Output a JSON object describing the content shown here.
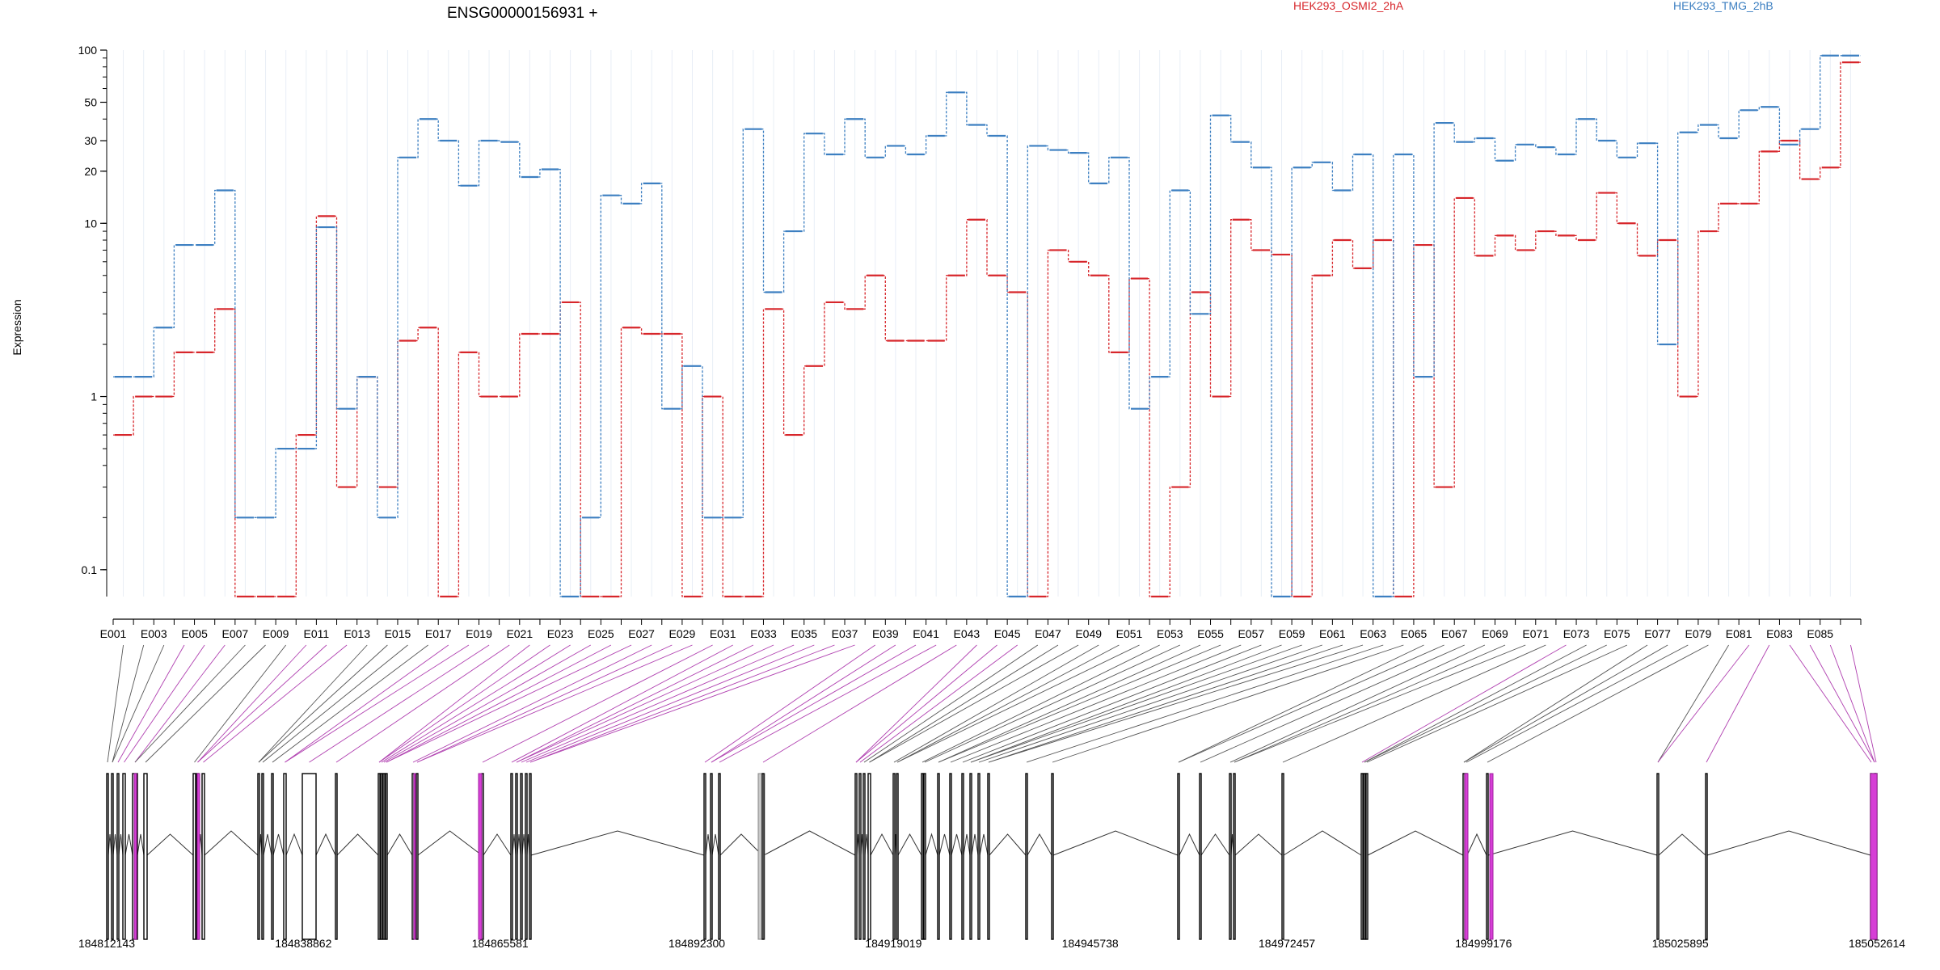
{
  "chart_data": {
    "type": "line",
    "title": "ENSG00000156931 +",
    "ylabel": "Expression",
    "xlabel": "",
    "yscale": "log",
    "yticks": [
      "0.1",
      "1",
      "10",
      "20",
      "30",
      "50",
      "100"
    ],
    "ylim": [
      0.07,
      100
    ],
    "grid": "vertical",
    "legend_placement": "top",
    "categories": [
      "E001",
      "E002",
      "E003",
      "E004",
      "E005",
      "E006",
      "E007",
      "E008",
      "E009",
      "E010",
      "E011",
      "E012",
      "E013",
      "E014",
      "E015",
      "E016",
      "E017",
      "E018",
      "E019",
      "E020",
      "E021",
      "E022",
      "E023",
      "E024",
      "E025",
      "E026",
      "E027",
      "E028",
      "E029",
      "E030",
      "E031",
      "E032",
      "E033",
      "E034",
      "E035",
      "E036",
      "E037",
      "E038",
      "E039",
      "E040",
      "E041",
      "E042",
      "E043",
      "E044",
      "E045",
      "E046",
      "E047",
      "E048",
      "E049",
      "E050",
      "E051",
      "E052",
      "E053",
      "E054",
      "E055",
      "E056",
      "E057",
      "E058",
      "E059",
      "E060",
      "E061",
      "E062",
      "E063",
      "E064",
      "E065",
      "E066",
      "E067",
      "E068",
      "E069",
      "E070",
      "E071",
      "E072",
      "E073",
      "E074",
      "E075",
      "E076",
      "E077",
      "E078",
      "E079",
      "E080",
      "E081",
      "E082",
      "E083",
      "E084",
      "E085",
      "E086"
    ],
    "tick_labels": [
      "E001",
      "E003",
      "E005",
      "E007",
      "E009",
      "E011",
      "E013",
      "E015",
      "E017",
      "E019",
      "E021",
      "E023",
      "E025",
      "E027",
      "E029",
      "E031",
      "E033",
      "E035",
      "E037",
      "E039",
      "E041",
      "E043",
      "E045",
      "E047",
      "E049",
      "E051",
      "E053",
      "E055",
      "E057",
      "E059",
      "E061",
      "E063",
      "E065",
      "E067",
      "E069",
      "E071",
      "E073",
      "E075",
      "E077",
      "E079",
      "E081",
      "E083",
      "E085"
    ],
    "series": [
      {
        "name": "HEK293_OSMI2_2hA",
        "color": "#d7262b",
        "values": [
          0.6,
          1,
          1,
          1.8,
          1.8,
          3.2,
          0.07,
          0.07,
          0.07,
          0.6,
          11,
          0.3,
          1.3,
          0.3,
          2.1,
          2.5,
          0.07,
          1.8,
          1,
          1,
          2.3,
          2.3,
          3.5,
          0.07,
          0.07,
          2.5,
          2.3,
          2.3,
          0.07,
          1,
          0.07,
          0.07,
          3.2,
          0.6,
          1.5,
          3.5,
          3.2,
          5,
          2.1,
          2.1,
          2.1,
          5,
          10.5,
          5,
          4,
          0.07,
          7,
          6,
          5,
          1.8,
          4.8,
          0.07,
          0.3,
          4,
          1,
          10.5,
          7,
          6.6,
          0.07,
          5,
          8,
          5.5,
          8,
          0.07,
          7.5,
          0.3,
          14,
          6.5,
          8.5,
          7,
          9,
          8.5,
          8,
          15,
          10,
          6.5,
          8,
          1,
          9,
          13,
          13,
          26,
          30,
          18,
          21,
          85
        ]
      },
      {
        "name": "HEK293_TMG_2hB",
        "color": "#3c7fc1",
        "values": [
          1.3,
          1.3,
          2.5,
          7.5,
          7.5,
          15.5,
          0.2,
          0.2,
          0.5,
          0.5,
          9.5,
          0.85,
          1.3,
          0.2,
          24,
          40,
          30,
          16.5,
          30,
          29.5,
          18.5,
          20.5,
          0.07,
          0.2,
          14.5,
          13,
          17,
          0.85,
          1.5,
          0.2,
          0.2,
          35,
          4,
          9,
          33,
          25,
          40,
          24,
          28,
          25,
          32,
          57,
          37,
          32,
          0.07,
          28,
          26.5,
          25.5,
          17,
          24,
          0.85,
          1.3,
          15.5,
          3,
          42,
          29.5,
          21,
          0.07,
          21,
          22.5,
          15.5,
          25,
          0.07,
          25,
          1.3,
          38,
          29.5,
          31,
          23,
          28.5,
          27.5,
          25,
          40,
          30,
          24,
          29,
          2,
          33.5,
          37,
          31,
          45,
          47,
          28.5,
          35,
          93,
          93
        ]
      }
    ],
    "gene_model": {
      "genomic_ticks": [
        "184812143",
        "184838862",
        "184865581",
        "184892300",
        "184919019",
        "184945738",
        "184972457",
        "184999176",
        "185025895",
        "185052614"
      ],
      "genomic_range": [
        184812143,
        185052614
      ],
      "exon_color": "#000000",
      "highlight_color": "#d63fd6",
      "gray_exon_color": "#c8c8c8"
    }
  }
}
